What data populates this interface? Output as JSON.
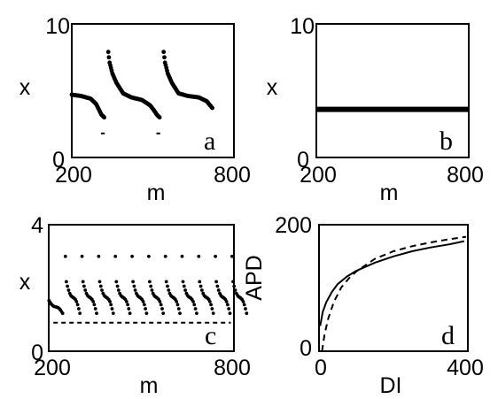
{
  "chart_data": [
    {
      "panel": "a",
      "type": "scatter",
      "xlabel": "m",
      "ylabel": "x",
      "xlim": [
        200,
        800
      ],
      "ylim": [
        0,
        10
      ],
      "xticks": [
        "200",
        "800"
      ],
      "yticks": [
        "0",
        "10"
      ],
      "grid": false,
      "series": [
        {
          "style": "dots",
          "segments": [
            {
              "x": [
                200,
                235,
                270,
                290,
                300,
                310,
                320
              ],
              "y": [
                4.7,
                4.6,
                4.4,
                4.0,
                3.6,
                3.2,
                3.0
              ]
            },
            {
              "x": [
                335,
                340,
                350,
                365,
                390,
                420,
                460,
                490,
                505,
                515,
                525
              ],
              "y": [
                7.9,
                7.1,
                6.3,
                5.6,
                4.8,
                4.5,
                4.3,
                3.9,
                3.5,
                3.2,
                3.0
              ]
            },
            {
              "x": [
                540,
                545,
                555,
                570,
                595,
                630,
                670,
                700,
                712,
                720
              ],
              "y": [
                7.9,
                7.1,
                6.3,
                5.6,
                4.8,
                4.6,
                4.5,
                4.2,
                3.9,
                3.7
              ]
            }
          ]
        },
        {
          "style": "dash-marks",
          "marks": [
            {
              "x1": 308,
              "x2": 322,
              "y": 1.8
            },
            {
              "x1": 513,
              "x2": 527,
              "y": 1.8
            }
          ]
        }
      ]
    },
    {
      "panel": "b",
      "type": "line",
      "xlabel": "m",
      "ylabel": "x",
      "xlim": [
        200,
        800
      ],
      "ylim": [
        0,
        10
      ],
      "xticks": [
        "200",
        "800"
      ],
      "yticks": [
        "0",
        "10"
      ],
      "grid": false,
      "series": [
        {
          "style": "thick-line",
          "x": [
            200,
            800
          ],
          "y": [
            3.6,
            3.6
          ]
        }
      ]
    },
    {
      "panel": "c",
      "type": "scatter",
      "xlabel": "m",
      "ylabel": "x",
      "xlim": [
        200,
        800
      ],
      "ylim": [
        0,
        4
      ],
      "xticks": [
        "200",
        "800"
      ],
      "yticks": [
        "0",
        "4"
      ],
      "grid": false,
      "series": [
        {
          "style": "dots",
          "period": 54,
          "branches": [
            {
              "x0": 254,
              "count": 11,
              "top": 3.0,
              "start": 2.2,
              "end": 1.2
            },
            {
              "x0": 200,
              "count": 1,
              "top": 1.6,
              "start": 1.6,
              "end": 1.2
            }
          ]
        },
        {
          "style": "dashed-line",
          "x": [
            215,
            790
          ],
          "y": [
            0.9,
            0.9
          ]
        }
      ]
    },
    {
      "panel": "d",
      "type": "line",
      "xlabel": "DI",
      "ylabel": "APD",
      "xlim": [
        0,
        400
      ],
      "ylim": [
        0,
        200
      ],
      "xticks": [
        "0",
        "400"
      ],
      "yticks": [
        "0",
        "200"
      ],
      "grid": false,
      "series": [
        {
          "style": "solid",
          "x": [
            3,
            10,
            20,
            35,
            50,
            75,
            100,
            150,
            200,
            250,
            300,
            350,
            390
          ],
          "y": [
            40,
            62,
            78,
            94,
            106,
            118,
            127,
            140,
            150,
            158,
            164,
            169,
            174
          ]
        },
        {
          "style": "dashed",
          "x": [
            8,
            15,
            25,
            40,
            60,
            80,
            100,
            150,
            200,
            250,
            300,
            350,
            395
          ],
          "y": [
            0,
            27,
            52,
            78,
            101,
            115,
            126,
            146,
            158,
            166,
            172,
            177,
            181
          ]
        }
      ]
    }
  ],
  "panel_labels": {
    "a": "a",
    "b": "b",
    "c": "c",
    "d": "d"
  },
  "axes_text": {
    "a": {
      "x0": "200",
      "x1": "800",
      "y0": "0",
      "y1": "10",
      "xlabel": "m",
      "ylabel": "x"
    },
    "b": {
      "x0": "200",
      "x1": "800",
      "y0": "0",
      "y1": "10",
      "xlabel": "m",
      "ylabel": "x"
    },
    "c": {
      "x0": "200",
      "x1": "800",
      "y0": "0",
      "y1": "4",
      "xlabel": "m",
      "ylabel": "x"
    },
    "d": {
      "x0": "0",
      "x1": "400",
      "y0": "0",
      "y1": "200",
      "xlabel": "DI",
      "ylabel": "APD"
    }
  },
  "colors": {
    "ink": "#000000",
    "background": "#ffffff"
  }
}
